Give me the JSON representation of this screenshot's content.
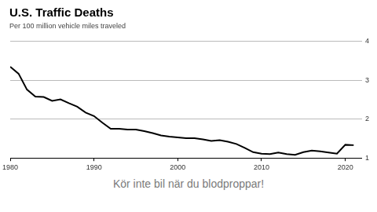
{
  "chart_data": {
    "type": "line",
    "title": "U.S. Traffic Deaths",
    "subtitle": "Per 100 million vehicle miles traveled",
    "caption": "Kör inte bil när du blodproppar!",
    "x": [
      1980,
      1981,
      1982,
      1983,
      1984,
      1985,
      1986,
      1987,
      1988,
      1989,
      1990,
      1991,
      1992,
      1993,
      1994,
      1995,
      1996,
      1997,
      1998,
      1999,
      2000,
      2001,
      2002,
      2003,
      2004,
      2005,
      2006,
      2007,
      2008,
      2009,
      2010,
      2011,
      2012,
      2013,
      2014,
      2015,
      2016,
      2017,
      2018,
      2019,
      2020,
      2021
    ],
    "values": [
      3.35,
      3.17,
      2.76,
      2.58,
      2.57,
      2.47,
      2.51,
      2.41,
      2.32,
      2.17,
      2.08,
      1.91,
      1.75,
      1.75,
      1.73,
      1.73,
      1.69,
      1.64,
      1.58,
      1.55,
      1.53,
      1.51,
      1.51,
      1.48,
      1.44,
      1.46,
      1.42,
      1.36,
      1.26,
      1.15,
      1.11,
      1.1,
      1.14,
      1.1,
      1.08,
      1.15,
      1.19,
      1.17,
      1.14,
      1.11,
      1.34,
      1.33
    ],
    "color": "#000000",
    "xlim": [
      1980,
      2022
    ],
    "xticks": [
      1980,
      1990,
      2000,
      2010,
      2020
    ],
    "ylim": [
      1,
      4
    ],
    "yticks": [
      1,
      2,
      3,
      4
    ],
    "grid": true
  }
}
